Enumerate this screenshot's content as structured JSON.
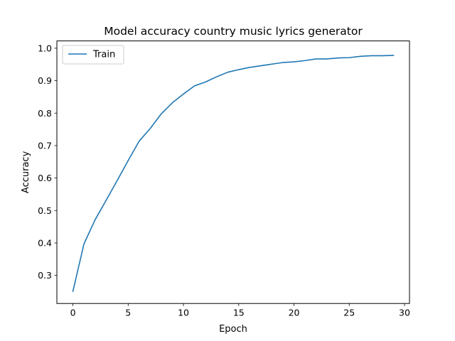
{
  "chart_data": {
    "type": "line",
    "title": "Model accuracy country music lyrics generator",
    "xlabel": "Epoch",
    "ylabel": "Accuracy",
    "xlim": [
      -1.45,
      30.45
    ],
    "ylim": [
      0.2135,
      1.0225
    ],
    "xticks": [
      0,
      5,
      10,
      15,
      20,
      25,
      30
    ],
    "yticks": [
      0.3,
      0.4,
      0.5,
      0.6,
      0.7,
      0.8,
      0.9,
      1.0
    ],
    "xtick_labels": [
      "0",
      "5",
      "10",
      "15",
      "20",
      "25",
      "30"
    ],
    "ytick_labels": [
      "0.3",
      "0.4",
      "0.5",
      "0.6",
      "0.7",
      "0.8",
      "0.9",
      "1.0"
    ],
    "grid": false,
    "legend_position": "top-left",
    "series": [
      {
        "name": "Train",
        "color": "#1f77b4",
        "x": [
          0,
          1,
          2,
          3,
          4,
          5,
          6,
          7,
          8,
          9,
          10,
          11,
          12,
          13,
          14,
          15,
          16,
          17,
          18,
          19,
          20,
          21,
          22,
          23,
          24,
          25,
          26,
          27,
          28,
          29
        ],
        "y": [
          0.251,
          0.397,
          0.471,
          0.531,
          0.592,
          0.654,
          0.714,
          0.753,
          0.798,
          0.832,
          0.859,
          0.884,
          0.896,
          0.912,
          0.926,
          0.934,
          0.941,
          0.946,
          0.951,
          0.956,
          0.958,
          0.962,
          0.967,
          0.967,
          0.97,
          0.971,
          0.975,
          0.977,
          0.977,
          0.978
        ]
      }
    ]
  }
}
